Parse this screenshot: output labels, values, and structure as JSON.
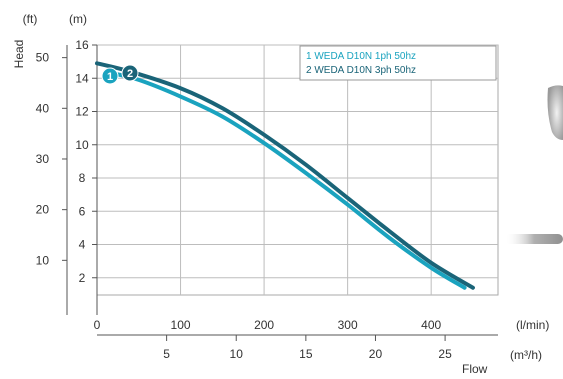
{
  "chart_data": {
    "type": "line",
    "ylabel": "Head",
    "xlabel": "Flow",
    "y_units_ft": "(ft)",
    "y_units_m": "(m)",
    "x_units_lmin": "(l/min)",
    "x_units_m3h": "(m³/h)",
    "x_lmin_ticks": [
      "0",
      "100",
      "200",
      "300",
      "400"
    ],
    "x_m3h_ticks": [
      "5",
      "10",
      "15",
      "20",
      "25"
    ],
    "y_m_ticks": [
      "2",
      "4",
      "6",
      "8",
      "10",
      "12",
      "14",
      "16"
    ],
    "y_ft_ticks": [
      "10",
      "20",
      "30",
      "40",
      "50"
    ],
    "xlim_lmin": [
      0,
      480
    ],
    "ylim_m": [
      0,
      16
    ],
    "grid": true,
    "legend_position": "top-right",
    "series": [
      {
        "name": "1 WEDA D10N 1ph 50hz",
        "marker_label": "1",
        "color": "#1aa3bf",
        "x": [
          10,
          50,
          100,
          150,
          200,
          250,
          300,
          350,
          400,
          440
        ],
        "y": [
          14.4,
          13.9,
          12.9,
          11.7,
          10.1,
          8.3,
          6.4,
          4.4,
          2.6,
          1.4
        ]
      },
      {
        "name": "2 WEDA D10N 3ph 50hz",
        "marker_label": "2",
        "color": "#1a6478",
        "x": [
          0,
          40,
          100,
          150,
          200,
          250,
          300,
          350,
          400,
          450
        ],
        "y": [
          14.9,
          14.4,
          13.4,
          12.2,
          10.6,
          8.8,
          6.8,
          4.8,
          2.9,
          1.4
        ]
      }
    ]
  }
}
